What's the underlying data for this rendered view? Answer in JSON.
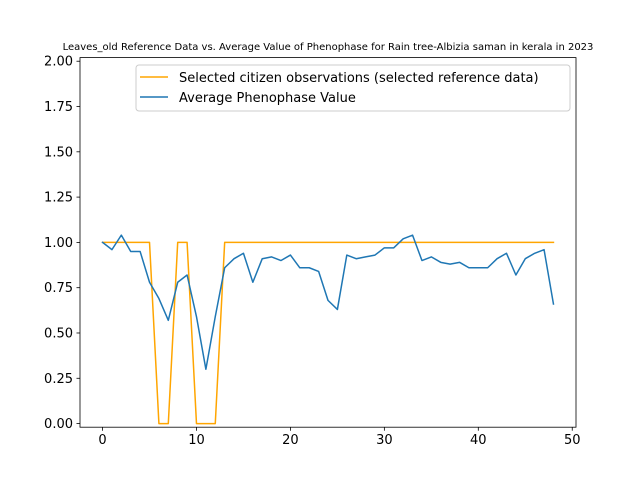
{
  "chart_data": {
    "type": "line",
    "title": "Leaves_old Reference Data vs. Average Value of Phenophase for Rain tree-Albizia saman in kerala in 2023",
    "xlabel": "",
    "ylabel": "",
    "xlim": [
      -2.4,
      50.4
    ],
    "ylim": [
      -0.02,
      2.02
    ],
    "x_ticks": [
      0,
      10,
      20,
      30,
      40,
      50
    ],
    "y_ticks": [
      0.0,
      0.25,
      0.5,
      0.75,
      1.0,
      1.25,
      1.5,
      1.75,
      2.0
    ],
    "grid": false,
    "legend_position": "top-right",
    "series": [
      {
        "name": "Selected citizen observations (selected reference data)",
        "color": "#ffa500",
        "x": [
          0,
          1,
          2,
          3,
          4,
          5,
          6,
          7,
          8,
          9,
          10,
          11,
          12,
          13,
          14,
          15,
          16,
          17,
          18,
          19,
          20,
          21,
          22,
          23,
          24,
          25,
          26,
          27,
          28,
          29,
          30,
          31,
          32,
          33,
          34,
          35,
          36,
          37,
          38,
          39,
          40,
          41,
          42,
          43,
          44,
          45,
          46,
          47,
          48
        ],
        "values": [
          1,
          1,
          1,
          1,
          1,
          1,
          0,
          0,
          1,
          1,
          0,
          0,
          0,
          1,
          1,
          1,
          1,
          1,
          1,
          1,
          1,
          1,
          1,
          1,
          1,
          1,
          1,
          1,
          1,
          1,
          1,
          1,
          1,
          1,
          1,
          1,
          1,
          1,
          1,
          1,
          1,
          1,
          1,
          1,
          1,
          1,
          1,
          1,
          1
        ]
      },
      {
        "name": "Average Phenophase Value",
        "color": "#1f77b4",
        "x": [
          0,
          1,
          2,
          3,
          4,
          5,
          6,
          7,
          8,
          9,
          10,
          11,
          12,
          13,
          14,
          15,
          16,
          17,
          18,
          19,
          20,
          21,
          22,
          23,
          24,
          25,
          26,
          27,
          28,
          29,
          30,
          31,
          32,
          33,
          34,
          35,
          36,
          37,
          38,
          39,
          40,
          41,
          42,
          43,
          44,
          45,
          46,
          47,
          48
        ],
        "values": [
          1.0,
          0.96,
          1.04,
          0.95,
          0.95,
          0.78,
          0.69,
          0.57,
          0.78,
          0.82,
          0.59,
          0.3,
          0.59,
          0.86,
          0.91,
          0.94,
          0.78,
          0.91,
          0.92,
          0.9,
          0.93,
          0.86,
          0.86,
          0.84,
          0.68,
          0.63,
          0.93,
          0.91,
          0.92,
          0.93,
          0.97,
          0.97,
          1.02,
          1.04,
          0.9,
          0.92,
          0.89,
          0.88,
          0.89,
          0.86,
          0.86,
          0.86,
          0.91,
          0.94,
          0.82,
          0.91,
          0.94,
          0.96,
          0.66
        ]
      }
    ]
  }
}
